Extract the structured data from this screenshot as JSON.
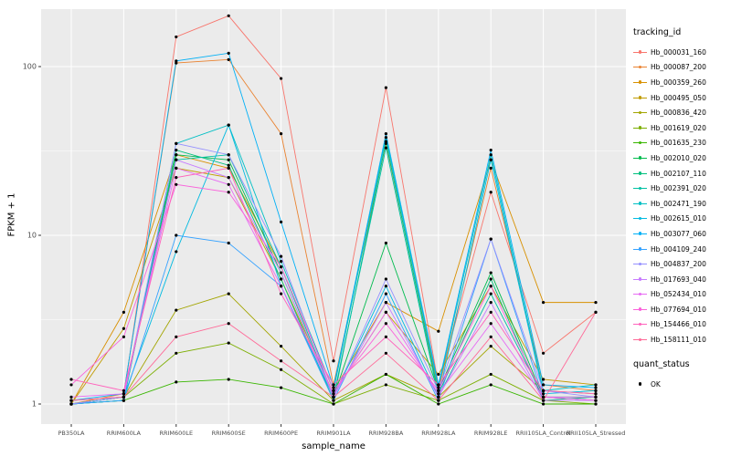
{
  "chart_data": {
    "type": "line",
    "title": "",
    "xlabel": "sample_name",
    "ylabel": "FPKM + 1",
    "y_scale": "log10",
    "y_ticks": [
      1,
      10,
      100
    ],
    "ylim": [
      0.93,
      230
    ],
    "grid": true,
    "panel_bg": "#EBEBEB",
    "grid_color": "#FFFFFF",
    "point_color": "#000000",
    "tick_label_color": "#4D4D4D",
    "legend_title": "tracking_id",
    "legend_position": "right",
    "legend2": {
      "title": "quant_status",
      "items": [
        {
          "label": "OK",
          "marker": "point",
          "color": "#000000"
        }
      ]
    },
    "categories": [
      "PB350LA",
      "RRIM600LA",
      "RRIM600LE",
      "RRIM600SE",
      "RRIM600PE",
      "RRIM901LA",
      "RRIM928BA",
      "RRIM928LA",
      "RRIM928LE",
      "RRII105LA_Control",
      "RRII105LA_Stressed"
    ],
    "series": [
      {
        "name": "Hb_000031_160",
        "color": "#F8766D",
        "values": [
          1.05,
          1.1,
          150,
          200,
          85,
          1.8,
          75,
          1.3,
          18,
          2.0,
          3.5
        ]
      },
      {
        "name": "Hb_000087_200",
        "color": "#EA8331",
        "values": [
          1.0,
          1.15,
          105,
          110,
          40,
          1.3,
          35,
          1.2,
          25,
          1.3,
          1.2
        ]
      },
      {
        "name": "Hb_000359_260",
        "color": "#D89000",
        "values": [
          1.0,
          3.5,
          30,
          25,
          6.5,
          1.2,
          4.0,
          2.7,
          28,
          4.0,
          4.0
        ]
      },
      {
        "name": "Hb_000495_050",
        "color": "#C09B00",
        "values": [
          1.0,
          2.8,
          25,
          22,
          5.5,
          1.15,
          3.5,
          1.5,
          5.0,
          1.4,
          1.3
        ]
      },
      {
        "name": "Hb_000836_420",
        "color": "#A3A500",
        "values": [
          1.0,
          1.1,
          3.6,
          4.5,
          2.2,
          1.05,
          1.5,
          1.1,
          2.2,
          1.2,
          1.15
        ]
      },
      {
        "name": "Hb_001619_020",
        "color": "#7CAE00",
        "values": [
          1.05,
          1.1,
          2.0,
          2.3,
          1.6,
          1.0,
          1.3,
          1.05,
          1.5,
          1.05,
          1.0
        ]
      },
      {
        "name": "Hb_001635_230",
        "color": "#39B600",
        "values": [
          1.0,
          1.05,
          1.35,
          1.4,
          1.25,
          1.0,
          1.5,
          1.0,
          1.3,
          1.0,
          1.0
        ]
      },
      {
        "name": "Hb_002010_020",
        "color": "#00BB4E",
        "values": [
          1.0,
          1.1,
          30,
          28,
          6.0,
          1.1,
          9.0,
          1.2,
          6.0,
          1.1,
          1.1
        ]
      },
      {
        "name": "Hb_002107_110",
        "color": "#00BF7D",
        "values": [
          1.0,
          1.05,
          32,
          26,
          5.5,
          1.05,
          36,
          1.15,
          5.5,
          1.05,
          1.1
        ]
      },
      {
        "name": "Hb_002391_020",
        "color": "#00C1A3",
        "values": [
          1.0,
          1.1,
          28,
          30,
          6.5,
          1.1,
          33,
          1.1,
          4.5,
          1.1,
          1.05
        ]
      },
      {
        "name": "Hb_002471_190",
        "color": "#00BFC4",
        "values": [
          1.0,
          1.05,
          35,
          45,
          7.0,
          1.2,
          38,
          1.25,
          30,
          1.2,
          1.3
        ]
      },
      {
        "name": "Hb_002615_010",
        "color": "#00BAE0",
        "values": [
          1.0,
          1.1,
          8.0,
          45,
          5.0,
          1.1,
          5.0,
          1.1,
          28,
          1.15,
          1.2
        ]
      },
      {
        "name": "Hb_003077_060",
        "color": "#00B0F6",
        "values": [
          1.05,
          1.15,
          108,
          120,
          12,
          1.25,
          40,
          1.3,
          32,
          1.3,
          1.25
        ]
      },
      {
        "name": "Hb_004109_240",
        "color": "#35A2FF",
        "values": [
          1.0,
          1.05,
          10,
          9.0,
          5.0,
          1.05,
          4.5,
          1.05,
          9.5,
          1.1,
          1.05
        ]
      },
      {
        "name": "Hb_004837_200",
        "color": "#9590FF",
        "values": [
          1.0,
          1.1,
          35,
          30,
          7.5,
          1.1,
          5.5,
          1.2,
          9.5,
          1.2,
          1.1
        ]
      },
      {
        "name": "Hb_017693_040",
        "color": "#C77CFF",
        "values": [
          1.05,
          1.1,
          28,
          22,
          6.0,
          1.1,
          4.0,
          1.1,
          4.0,
          1.05,
          1.05
        ]
      },
      {
        "name": "Hb_052434_010",
        "color": "#E76BF3",
        "values": [
          1.1,
          1.15,
          25,
          20,
          5.0,
          1.15,
          3.5,
          1.15,
          3.0,
          1.1,
          1.1
        ]
      },
      {
        "name": "Hb_077694_010",
        "color": "#FA62DB",
        "values": [
          1.3,
          2.5,
          20,
          18,
          6.5,
          1.2,
          3.0,
          1.2,
          5.0,
          1.1,
          1.05
        ]
      },
      {
        "name": "Hb_154466_010",
        "color": "#FF62BC",
        "values": [
          1.4,
          1.2,
          22,
          25,
          4.5,
          1.3,
          2.5,
          1.3,
          3.5,
          1.2,
          1.15
        ]
      },
      {
        "name": "Hb_158111_010",
        "color": "#FF6A98",
        "values": [
          1.05,
          1.1,
          2.5,
          3.0,
          1.8,
          1.1,
          2.0,
          1.05,
          2.5,
          1.05,
          3.5
        ]
      }
    ]
  }
}
